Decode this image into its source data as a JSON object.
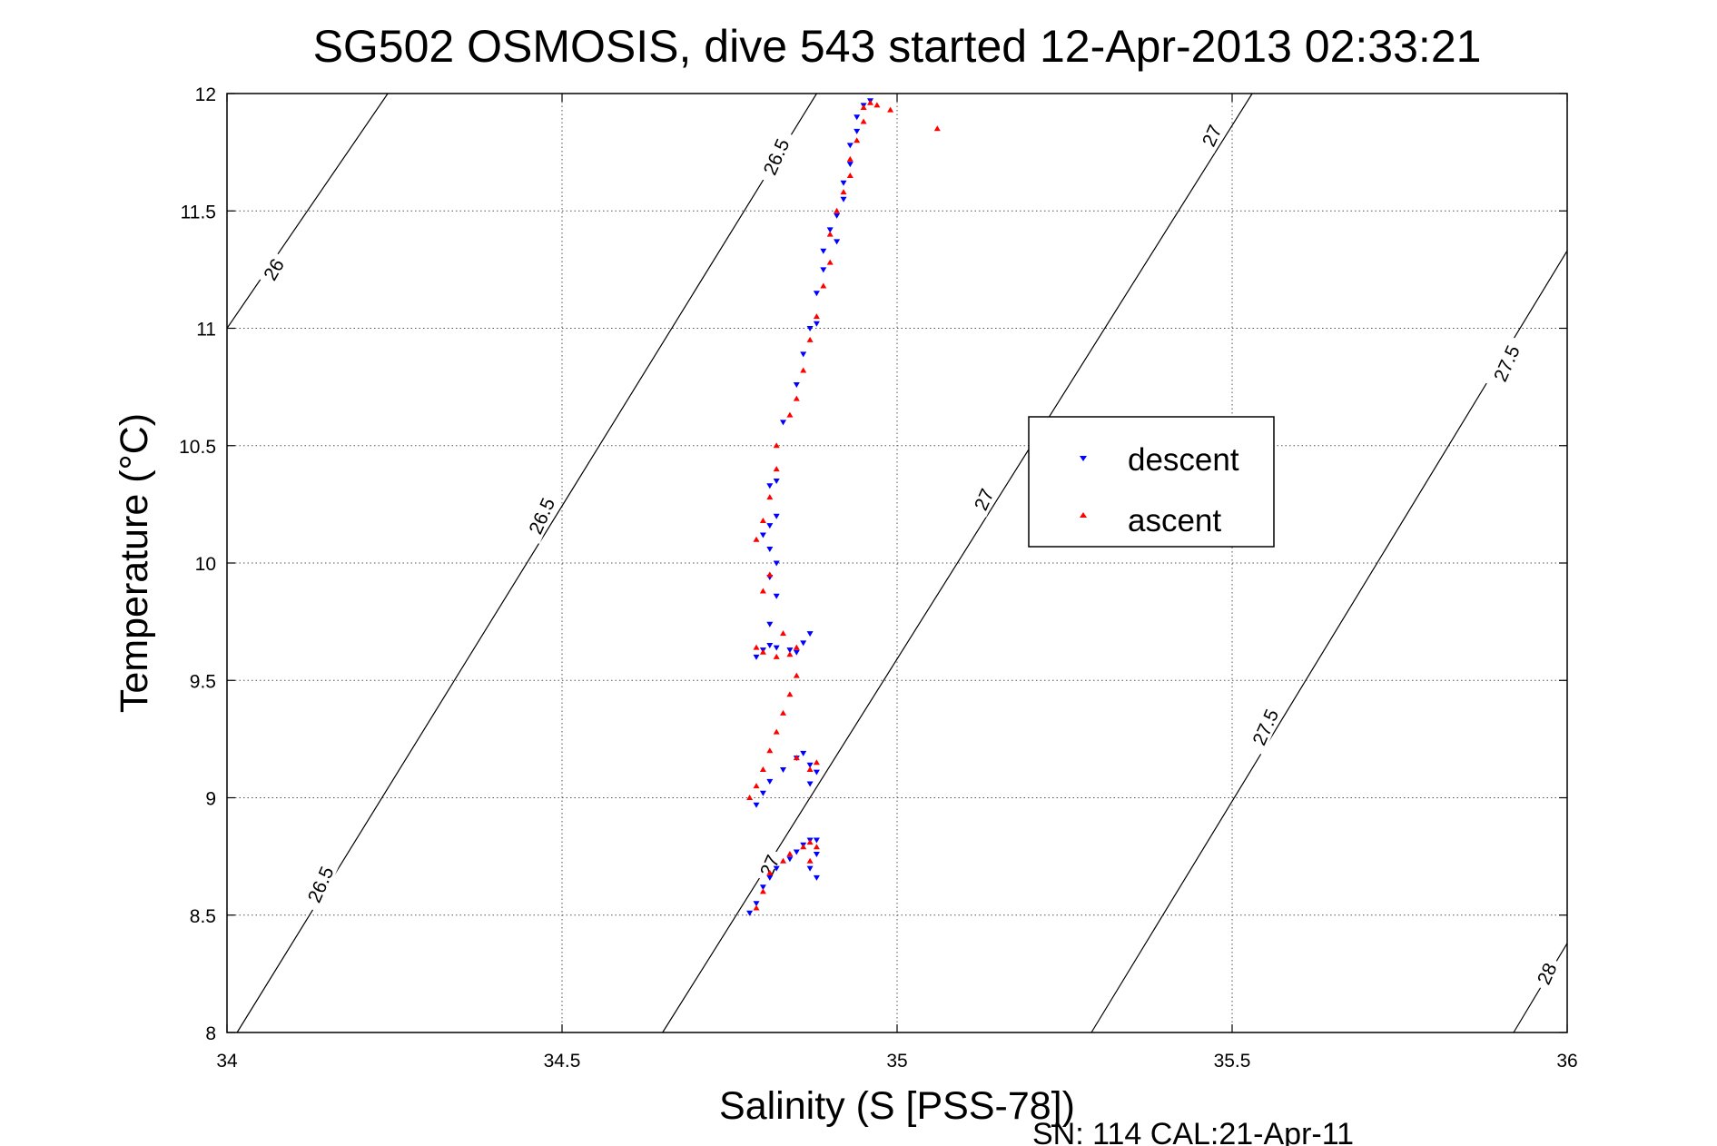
{
  "chart_data": {
    "type": "scatter",
    "title": "SG502 OSMOSIS, dive 543 started 12-Apr-2013 02:33:21",
    "xlabel": "Salinity (S [PSS-78])",
    "ylabel": "Temperature (°C)",
    "xlim": [
      34,
      36
    ],
    "ylim": [
      8,
      12
    ],
    "x_ticks": [
      "34",
      "34.5",
      "35",
      "35.5",
      "36"
    ],
    "y_ticks": [
      "8",
      "8.5",
      "9",
      "9.5",
      "10",
      "10.5",
      "11",
      "11.5",
      "12"
    ],
    "grid": true,
    "legend_placement": "center-right",
    "footer": "SN: 114  CAL:21-Apr-11",
    "contours": [
      {
        "label": "26",
        "points": [
          [
            34.0,
            11.0
          ],
          [
            34.24,
            12.0
          ]
        ]
      },
      {
        "label": "26.5",
        "points": [
          [
            34.015,
            8.0
          ],
          [
            34.88,
            12.0
          ]
        ]
      },
      {
        "label": "27",
        "points": [
          [
            34.65,
            8.0
          ],
          [
            35.53,
            12.0
          ]
        ]
      },
      {
        "label": "27.5",
        "points": [
          [
            35.29,
            8.0
          ],
          [
            36.0,
            11.33
          ]
        ]
      },
      {
        "label": "28",
        "points": [
          [
            35.92,
            8.0
          ],
          [
            36.0,
            8.38
          ]
        ]
      }
    ],
    "contour_labels": [
      {
        "text": "26",
        "x": 34.07,
        "y": 11.25,
        "angle": -60
      },
      {
        "text": "26.5",
        "x": 34.14,
        "y": 8.63,
        "angle": -66
      },
      {
        "text": "26.5",
        "x": 34.47,
        "y": 10.2,
        "angle": -66
      },
      {
        "text": "26.5",
        "x": 34.82,
        "y": 11.73,
        "angle": -66
      },
      {
        "text": "27",
        "x": 34.81,
        "y": 8.71,
        "angle": -66
      },
      {
        "text": "27",
        "x": 35.13,
        "y": 10.27,
        "angle": -66
      },
      {
        "text": "27",
        "x": 35.47,
        "y": 11.82,
        "angle": -66
      },
      {
        "text": "27.5",
        "x": 35.55,
        "y": 9.3,
        "angle": -66
      },
      {
        "text": "27.5",
        "x": 35.91,
        "y": 10.85,
        "angle": -66
      },
      {
        "text": "28",
        "x": 35.97,
        "y": 8.25,
        "angle": -66
      }
    ],
    "series": [
      {
        "name": "descent",
        "color": "#0000ff",
        "marker": "triangle-down",
        "points": [
          [
            34.78,
            8.51
          ],
          [
            34.79,
            8.55
          ],
          [
            34.8,
            8.62
          ],
          [
            34.81,
            8.66
          ],
          [
            34.82,
            8.7
          ],
          [
            34.84,
            8.74
          ],
          [
            34.85,
            8.77
          ],
          [
            34.86,
            8.8
          ],
          [
            34.87,
            8.82
          ],
          [
            34.88,
            8.82
          ],
          [
            34.88,
            8.76
          ],
          [
            34.87,
            8.7
          ],
          [
            34.88,
            8.66
          ],
          [
            34.79,
            8.97
          ],
          [
            34.8,
            9.02
          ],
          [
            34.81,
            9.07
          ],
          [
            34.83,
            9.12
          ],
          [
            34.85,
            9.17
          ],
          [
            34.86,
            9.19
          ],
          [
            34.87,
            9.14
          ],
          [
            34.88,
            9.11
          ],
          [
            34.87,
            9.06
          ],
          [
            34.79,
            9.6
          ],
          [
            34.8,
            9.63
          ],
          [
            34.81,
            9.65
          ],
          [
            34.82,
            9.64
          ],
          [
            34.84,
            9.63
          ],
          [
            34.85,
            9.62
          ],
          [
            34.86,
            9.66
          ],
          [
            34.87,
            9.7
          ],
          [
            34.81,
            9.74
          ],
          [
            34.82,
            9.86
          ],
          [
            34.81,
            9.94
          ],
          [
            34.82,
            10.0
          ],
          [
            34.81,
            10.06
          ],
          [
            34.8,
            10.12
          ],
          [
            34.81,
            10.16
          ],
          [
            34.82,
            10.2
          ],
          [
            34.81,
            10.33
          ],
          [
            34.82,
            10.35
          ],
          [
            34.83,
            10.6
          ],
          [
            34.85,
            10.76
          ],
          [
            34.86,
            10.89
          ],
          [
            34.87,
            11.0
          ],
          [
            34.88,
            11.02
          ],
          [
            34.88,
            11.15
          ],
          [
            34.89,
            11.25
          ],
          [
            34.89,
            11.33
          ],
          [
            34.91,
            11.37
          ],
          [
            34.9,
            11.42
          ],
          [
            34.91,
            11.48
          ],
          [
            34.92,
            11.55
          ],
          [
            34.92,
            11.62
          ],
          [
            34.93,
            11.7
          ],
          [
            34.93,
            11.78
          ],
          [
            34.94,
            11.84
          ],
          [
            34.94,
            11.9
          ],
          [
            34.95,
            11.95
          ],
          [
            34.96,
            11.97
          ]
        ]
      },
      {
        "name": "ascent",
        "color": "#ff0000",
        "marker": "triangle-up",
        "points": [
          [
            34.79,
            8.53
          ],
          [
            34.8,
            8.6
          ],
          [
            34.81,
            8.68
          ],
          [
            34.83,
            8.73
          ],
          [
            34.84,
            8.76
          ],
          [
            34.86,
            8.79
          ],
          [
            34.87,
            8.81
          ],
          [
            34.88,
            8.79
          ],
          [
            34.87,
            8.73
          ],
          [
            34.78,
            9.0
          ],
          [
            34.79,
            9.05
          ],
          [
            34.8,
            9.12
          ],
          [
            34.81,
            9.2
          ],
          [
            34.82,
            9.28
          ],
          [
            34.83,
            9.36
          ],
          [
            34.84,
            9.44
          ],
          [
            34.85,
            9.52
          ],
          [
            34.85,
            9.17
          ],
          [
            34.87,
            9.12
          ],
          [
            34.88,
            9.15
          ],
          [
            34.79,
            9.64
          ],
          [
            34.8,
            9.62
          ],
          [
            34.82,
            9.6
          ],
          [
            34.84,
            9.61
          ],
          [
            34.85,
            9.64
          ],
          [
            34.83,
            9.7
          ],
          [
            34.8,
            9.88
          ],
          [
            34.81,
            9.95
          ],
          [
            34.79,
            10.1
          ],
          [
            34.8,
            10.18
          ],
          [
            34.81,
            10.28
          ],
          [
            34.82,
            10.4
          ],
          [
            34.82,
            10.5
          ],
          [
            34.84,
            10.63
          ],
          [
            34.85,
            10.7
          ],
          [
            34.86,
            10.82
          ],
          [
            34.87,
            10.95
          ],
          [
            34.88,
            11.05
          ],
          [
            34.89,
            11.18
          ],
          [
            34.9,
            11.28
          ],
          [
            34.9,
            11.4
          ],
          [
            34.91,
            11.5
          ],
          [
            34.92,
            11.58
          ],
          [
            34.93,
            11.65
          ],
          [
            34.93,
            11.72
          ],
          [
            34.94,
            11.8
          ],
          [
            34.95,
            11.88
          ],
          [
            34.95,
            11.94
          ],
          [
            34.96,
            11.96
          ],
          [
            34.97,
            11.95
          ],
          [
            34.99,
            11.93
          ],
          [
            35.06,
            11.85
          ]
        ]
      }
    ]
  }
}
